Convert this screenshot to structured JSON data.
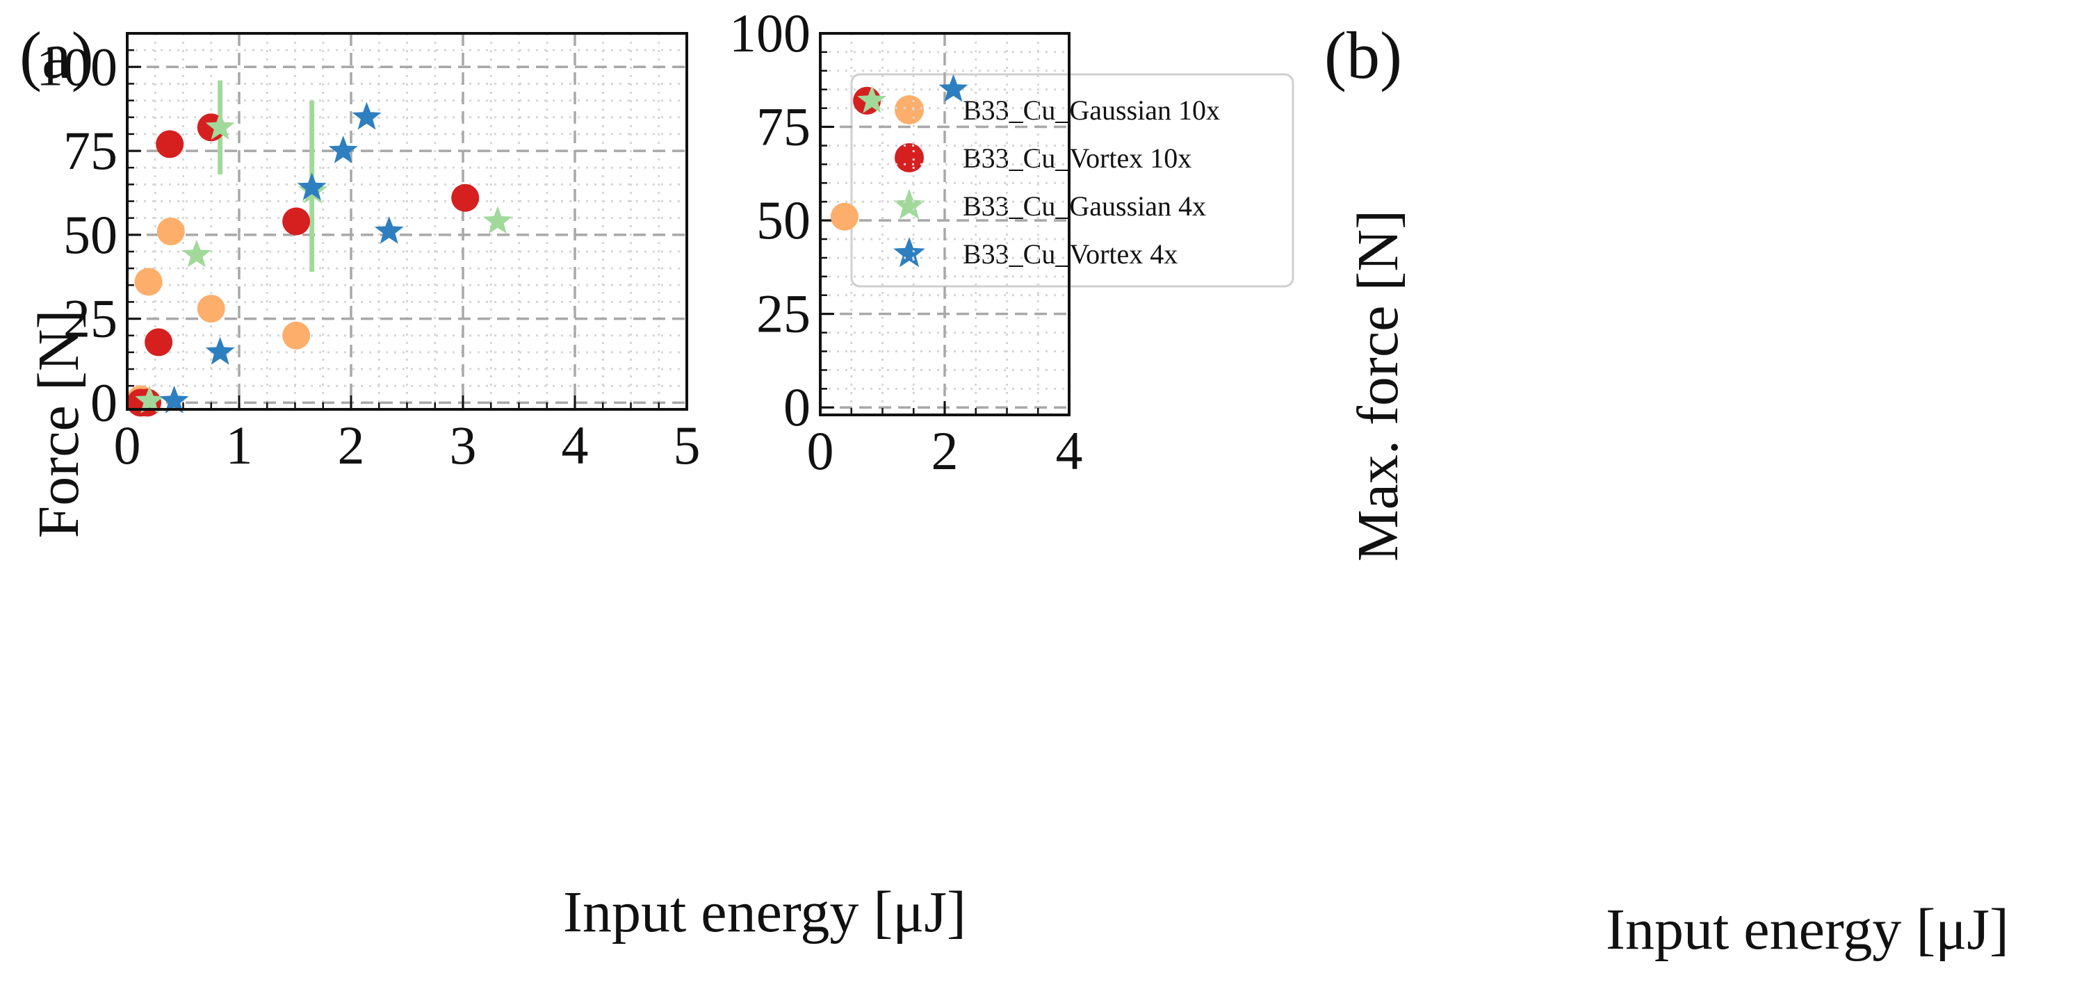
{
  "chart_data": [
    {
      "panel": "(a)",
      "type": "scatter",
      "xlabel": "Input energy [μJ]",
      "ylabel": "Force [N]",
      "xlim": [
        0,
        5
      ],
      "ylim": [
        -2,
        110
      ],
      "xticks": [
        0,
        1,
        2,
        3,
        4,
        5
      ],
      "yticks": [
        0,
        25,
        50,
        75,
        100
      ],
      "grid": true,
      "legend_position": "top-right",
      "series": [
        {
          "name": "B33_Cu_Gaussian 10x",
          "marker": "circle",
          "color": "#fdae6b",
          "points": [
            [
              0.12,
              1
            ],
            [
              0.19,
              36
            ],
            [
              0.39,
              51
            ],
            [
              0.75,
              28
            ],
            [
              1.51,
              20
            ]
          ]
        },
        {
          "name": "B33_Cu_Vortex 10x",
          "marker": "circle",
          "color": "#d62020",
          "points": [
            [
              0.12,
              0
            ],
            [
              0.18,
              0
            ],
            [
              0.28,
              18
            ],
            [
              0.38,
              77
            ],
            [
              0.75,
              82
            ],
            [
              1.51,
              54
            ],
            [
              3.02,
              61
            ]
          ]
        },
        {
          "name": "B33_Cu_Gaussian 4x",
          "marker": "star",
          "color": "#a1d99b",
          "points": [
            [
              0.2,
              0.5
            ],
            [
              0.62,
              44
            ],
            [
              0.83,
              82
            ],
            [
              1.66,
              63
            ],
            [
              3.31,
              54
            ]
          ],
          "error_bars": [
            {
              "x": 0.83,
              "low": 68,
              "high": 96
            },
            {
              "x": 1.65,
              "low": 39,
              "high": 90
            }
          ]
        },
        {
          "name": "B33_Cu_Vortex 4x",
          "marker": "star",
          "color": "#2e7fc0",
          "points": [
            [
              0.42,
              0.5
            ],
            [
              0.83,
              15
            ],
            [
              1.65,
              64
            ],
            [
              1.93,
              75
            ],
            [
              2.14,
              85
            ],
            [
              2.34,
              51
            ]
          ]
        }
      ]
    },
    {
      "panel": "(b)",
      "type": "scatter",
      "xlabel": "Input energy [μJ]",
      "ylabel": "Max. force [N]",
      "xlim": [
        0,
        4
      ],
      "ylim": [
        -2,
        100
      ],
      "xticks": [
        0,
        2,
        4
      ],
      "yticks": [
        0,
        25,
        50,
        75,
        100
      ],
      "grid": true,
      "series": [
        {
          "name": "B33_Cu_Gaussian 10x",
          "marker": "circle",
          "color": "#fdae6b",
          "points": [
            [
              0.39,
              51
            ]
          ]
        },
        {
          "name": "B33_Cu_Vortex 10x",
          "marker": "circle",
          "color": "#d62020",
          "points": [
            [
              0.75,
              82
            ]
          ]
        },
        {
          "name": "B33_Cu_Gaussian 4x",
          "marker": "star",
          "color": "#a1d99b",
          "points": [
            [
              0.83,
              82
            ]
          ]
        },
        {
          "name": "B33_Cu_Vortex 4x",
          "marker": "star",
          "color": "#2e7fc0",
          "points": [
            [
              2.14,
              85
            ]
          ]
        }
      ]
    }
  ]
}
